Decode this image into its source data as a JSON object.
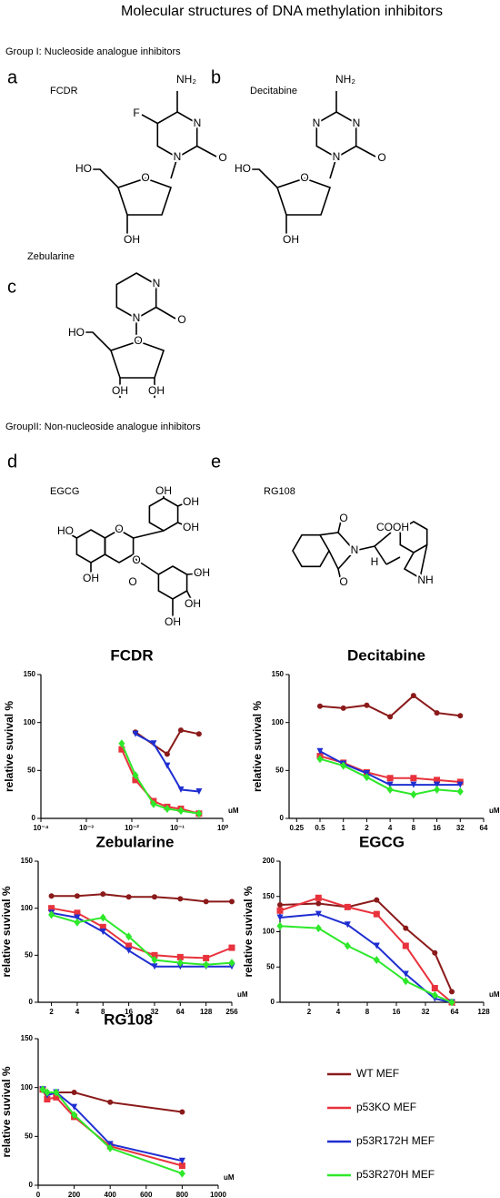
{
  "title": "Molecular structures of DNA methylation inhibitors",
  "group1": "Group I: Nucleoside analogue inhibitors",
  "group2": "GroupII: Non-nucleoside analogue inhibitors",
  "molecules": [
    {
      "panel": "a",
      "name": "FCDR",
      "atoms": [
        "NH₂",
        "F",
        "N",
        "N",
        "O",
        "O",
        "HO",
        "OH"
      ]
    },
    {
      "panel": "b",
      "name": "Decitabine",
      "atoms": [
        "NH₂",
        "N",
        "N",
        "N",
        "O",
        "O",
        "HO",
        "OH"
      ]
    },
    {
      "panel": "c",
      "name": "Zebularine",
      "atoms": [
        "N",
        "N",
        "O",
        "O",
        "HO",
        "OH",
        "OH"
      ]
    },
    {
      "panel": "d",
      "name": "EGCG",
      "atoms": [
        "HO",
        "OH",
        "O",
        "O",
        "O",
        "OH",
        "OH",
        "OH",
        "OH",
        "OH",
        "OH"
      ]
    },
    {
      "panel": "e",
      "name": "RG108",
      "atoms": [
        "O",
        "O",
        "N",
        "COOH",
        "H",
        "NH"
      ]
    }
  ],
  "legend": [
    {
      "name": "WT MEF",
      "color": "#8b1a1a",
      "marker": "circle"
    },
    {
      "name": "p53KO MEF",
      "color": "#e8323c",
      "marker": "square"
    },
    {
      "name": "p53R172H MEF",
      "color": "#1f2ed1",
      "marker": "triangle"
    },
    {
      "name": "p53R270H MEF",
      "color": "#2ee82a",
      "marker": "diamond"
    }
  ],
  "chart_data": [
    {
      "type": "line",
      "title": "FCDR",
      "y_label": "relative suvival %",
      "x_unit": "uM",
      "xscale": "log",
      "xlim": [
        0.0001,
        1
      ],
      "xticks": [
        {
          "value": 0.0001,
          "label": "10⁻⁴"
        },
        {
          "value": 0.001,
          "label": "10⁻³"
        },
        {
          "value": 0.01,
          "label": "10⁻²"
        },
        {
          "value": 0.1,
          "label": "10⁻¹"
        },
        {
          "value": 1,
          "label": "10⁰"
        }
      ],
      "ylim": [
        0,
        150
      ],
      "yticks": [
        0,
        50,
        100,
        150
      ],
      "x": [
        0.006,
        0.012,
        0.03,
        0.06,
        0.12,
        0.3
      ],
      "series": [
        {
          "values": [
            null,
            90,
            null,
            67,
            92,
            88
          ]
        },
        {
          "values": [
            72,
            40,
            18,
            12,
            10,
            5
          ]
        },
        {
          "values": [
            null,
            88,
            78,
            55,
            30,
            28
          ]
        },
        {
          "values": [
            78,
            45,
            15,
            10,
            8,
            5
          ]
        }
      ]
    },
    {
      "type": "line",
      "title": "Decitabine",
      "y_label": "relative suvival %",
      "x_unit": "uM",
      "xscale": "log",
      "xlim": [
        0.2,
        64
      ],
      "xticks": [
        0.25,
        0.5,
        1,
        2,
        4,
        8,
        16,
        32,
        64
      ],
      "ylim": [
        0,
        150
      ],
      "yticks": [
        0,
        50,
        100,
        150
      ],
      "x": [
        0.5,
        1,
        2,
        4,
        8,
        16,
        32
      ],
      "series": [
        {
          "values": [
            117,
            115,
            118,
            106,
            128,
            110,
            107
          ]
        },
        {
          "values": [
            65,
            58,
            48,
            42,
            42,
            40,
            38
          ]
        },
        {
          "values": [
            70,
            57,
            47,
            35,
            35,
            35,
            35
          ]
        },
        {
          "values": [
            62,
            55,
            43,
            30,
            25,
            30,
            28
          ]
        }
      ]
    },
    {
      "type": "line",
      "title": "Zebularine",
      "y_label": "relative suvival %",
      "x_unit": "uM",
      "xscale": "log",
      "xlim": [
        1.4,
        256
      ],
      "xticks": [
        2,
        4,
        8,
        16,
        32,
        64,
        128,
        256
      ],
      "ylim": [
        0,
        150
      ],
      "yticks": [
        0,
        50,
        100,
        150
      ],
      "x": [
        2,
        4,
        8,
        16,
        32,
        64,
        128,
        256
      ],
      "series": [
        {
          "values": [
            113,
            113,
            115,
            112,
            112,
            110,
            107,
            107
          ]
        },
        {
          "values": [
            100,
            95,
            80,
            60,
            50,
            48,
            47,
            58
          ]
        },
        {
          "values": [
            95,
            90,
            75,
            55,
            38,
            38,
            38,
            38
          ]
        },
        {
          "values": [
            93,
            85,
            90,
            70,
            45,
            42,
            40,
            42
          ]
        }
      ]
    },
    {
      "type": "line",
      "title": "EGCG",
      "y_label": "relative suvival %",
      "x_unit": "uM",
      "xscale": "log",
      "xlim": [
        1,
        128
      ],
      "xticks": [
        2,
        4,
        8,
        16,
        32,
        64,
        128
      ],
      "ylim": [
        0,
        200
      ],
      "yticks": [
        0,
        50,
        100,
        150,
        200
      ],
      "x": [
        1,
        2.5,
        5,
        10,
        20,
        40,
        60
      ],
      "series": [
        {
          "values": [
            138,
            140,
            135,
            145,
            105,
            70,
            15
          ]
        },
        {
          "values": [
            130,
            148,
            135,
            125,
            80,
            20,
            0
          ]
        },
        {
          "values": [
            120,
            125,
            110,
            80,
            40,
            5,
            0
          ]
        },
        {
          "values": [
            108,
            105,
            80,
            60,
            30,
            10,
            0
          ]
        }
      ]
    },
    {
      "type": "line",
      "title": "RG108",
      "y_label": "relative suvival %",
      "x_unit": "uM",
      "xscale": "linear",
      "xlim": [
        0,
        1000
      ],
      "xticks": [
        0,
        200,
        400,
        600,
        800,
        1000
      ],
      "ylim": [
        0,
        150
      ],
      "yticks": [
        0,
        50,
        100,
        150
      ],
      "x": [
        25,
        50,
        100,
        200,
        400,
        800
      ],
      "series": [
        {
          "values": [
            98,
            95,
            95,
            95,
            85,
            75
          ]
        },
        {
          "values": [
            98,
            88,
            90,
            70,
            40,
            20
          ]
        },
        {
          "values": [
            98,
            92,
            95,
            80,
            42,
            25
          ]
        },
        {
          "values": [
            98,
            95,
            95,
            72,
            38,
            12
          ]
        }
      ]
    }
  ]
}
